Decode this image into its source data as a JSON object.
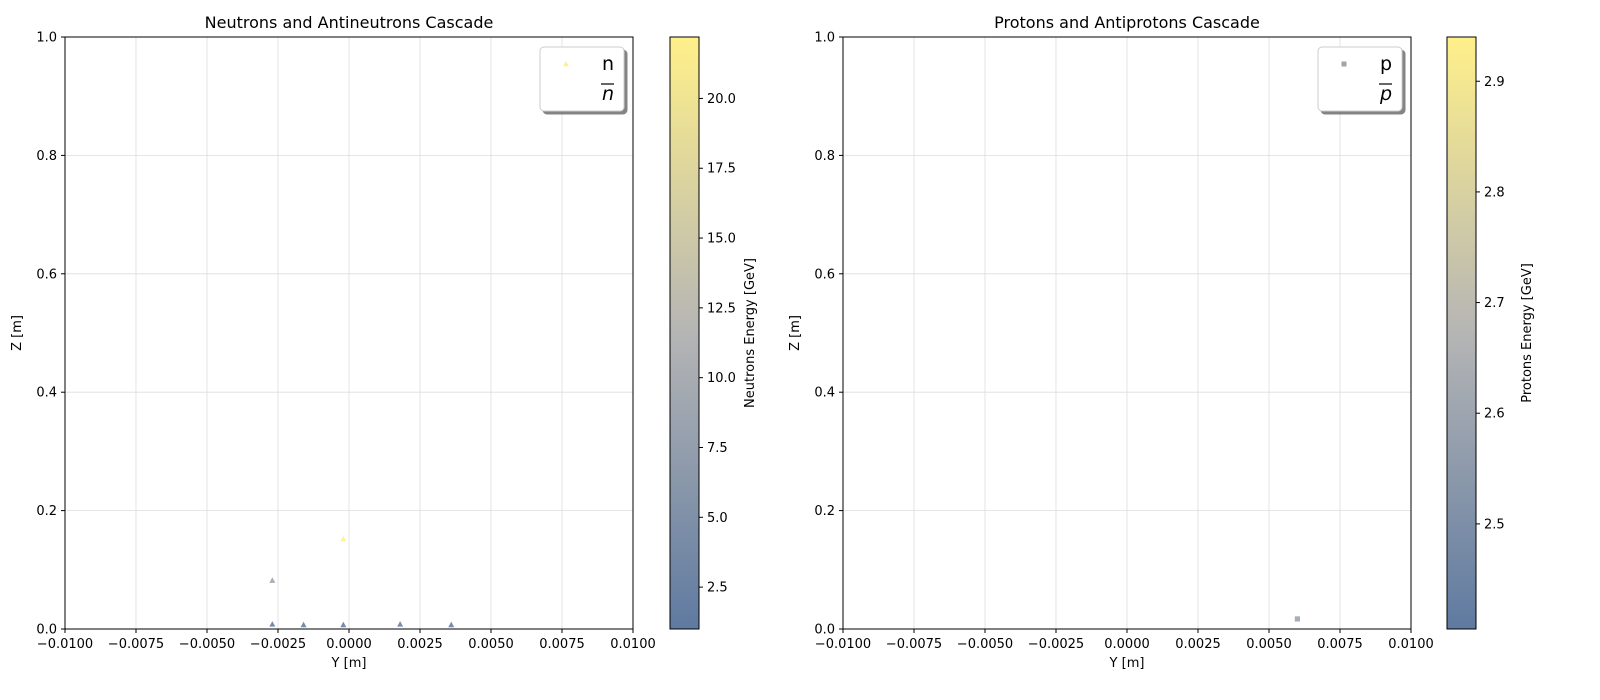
{
  "chart_data": [
    {
      "type": "scatter",
      "title": "Neutrons and Antineutrons Cascade",
      "xlabel": "Y [m]",
      "ylabel": "Z [m]",
      "xlim": [
        -0.01,
        0.01
      ],
      "ylim": [
        0.0,
        1.0
      ],
      "xticks": [
        "−0.0100",
        "−0.0075",
        "−0.0050",
        "−0.0025",
        "0.0000",
        "0.0025",
        "0.0050",
        "0.0075",
        "0.0100"
      ],
      "yticks": [
        "0.0",
        "0.2",
        "0.4",
        "0.6",
        "0.8",
        "1.0"
      ],
      "grid": true,
      "legend_position": "top-right",
      "series": [
        {
          "name": "n",
          "marker": "triangle",
          "points": [
            {
              "y": -0.0027,
              "z": 0.008,
              "energy": 2.0
            },
            {
              "y": -0.0016,
              "z": 0.007,
              "energy": 2.2
            },
            {
              "y": -0.0002,
              "z": 0.007,
              "energy": 2.1
            },
            {
              "y": 0.0018,
              "z": 0.008,
              "energy": 2.3
            },
            {
              "y": 0.0036,
              "z": 0.007,
              "energy": 2.4
            },
            {
              "y": -0.0027,
              "z": 0.082,
              "energy": 9.0
            },
            {
              "y": -0.0002,
              "z": 0.152,
              "energy": 22.0
            }
          ]
        },
        {
          "name": "$\\overline{n}$",
          "display_base": "n",
          "marker": "none",
          "points": []
        }
      ],
      "colorbar": {
        "label": "Neutrons Energy [GeV]",
        "min": 1.0,
        "max": 22.2,
        "ticks": [
          "2.5",
          "5.0",
          "7.5",
          "10.0",
          "12.5",
          "15.0",
          "17.5",
          "20.0"
        ]
      }
    },
    {
      "type": "scatter",
      "title": "Protons and Antiprotons Cascade",
      "xlabel": "Y [m]",
      "ylabel": "Z [m]",
      "xlim": [
        -0.01,
        0.01
      ],
      "ylim": [
        0.0,
        1.0
      ],
      "xticks": [
        "−0.0100",
        "−0.0075",
        "−0.0050",
        "−0.0025",
        "0.0000",
        "0.0025",
        "0.0050",
        "0.0075",
        "0.0100"
      ],
      "yticks": [
        "0.0",
        "0.2",
        "0.4",
        "0.6",
        "0.8",
        "1.0"
      ],
      "grid": true,
      "legend_position": "top-right",
      "series": [
        {
          "name": "p",
          "marker": "square",
          "points": [
            {
              "y": 0.006,
              "z": 0.017,
              "energy": 2.6
            }
          ]
        },
        {
          "name": "$\\overline{p}$",
          "display_base": "p",
          "marker": "none",
          "points": []
        }
      ],
      "colorbar": {
        "label": "Protons Energy [GeV]",
        "min": 2.405,
        "max": 2.94,
        "ticks": [
          "2.5",
          "2.6",
          "2.7",
          "2.8",
          "2.9"
        ]
      }
    }
  ],
  "colors": {
    "colormap_low": "#5f7aa0",
    "colormap_mid": "#b5b5b5",
    "colormap_high": "#fff08a",
    "grid": "#dddddd",
    "axis": "#000000"
  }
}
